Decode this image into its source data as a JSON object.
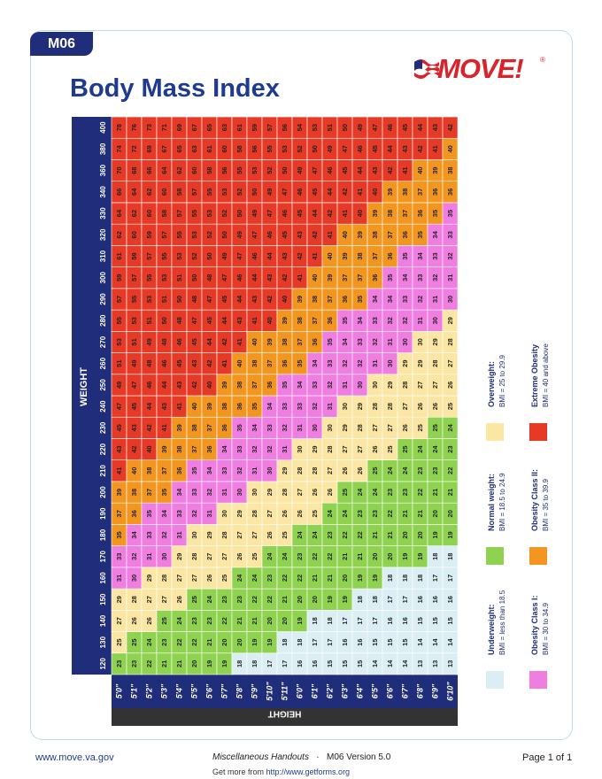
{
  "header": {
    "tab_label": "M06",
    "title": "Body Mass Index",
    "logo_text": "MOVE!",
    "logo_reg": "®"
  },
  "footer": {
    "website": "www.move.va.gov",
    "handout_title": "Miscellaneous Handouts",
    "separator": "·",
    "version": "M06 Version 5.0",
    "page": "Page 1 of 1",
    "get_more_prefix": "Get more from",
    "get_more_url": "http://www.getforms.org"
  },
  "chart_data": {
    "type": "table",
    "title": "",
    "weight_label": "WEIGHT",
    "height_label": "HEIGHT",
    "weights": [
      "120",
      "130",
      "140",
      "150",
      "160",
      "170",
      "180",
      "190",
      "200",
      "210",
      "220",
      "230",
      "240",
      "250",
      "260",
      "270",
      "280",
      "290",
      "300",
      "310",
      "320",
      "330",
      "340",
      "360",
      "380",
      "400"
    ],
    "heights": [
      "5'0\"",
      "5'1\"",
      "5'2\"",
      "5'3\"",
      "5'4\"",
      "5'5\"",
      "5'6\"",
      "5'7\"",
      "5'8\"",
      "5'9\"",
      "5'10\"",
      "5'11\"",
      "6'0\"",
      "6'1\"",
      "6'2\"",
      "6'3\"",
      "6'4\"",
      "6'5\"",
      "6'6\"",
      "6'7\"",
      "6'8\"",
      "6'9\"",
      "6'10\""
    ],
    "weight_values_lb": [
      120,
      130,
      140,
      150,
      160,
      170,
      180,
      190,
      200,
      210,
      220,
      230,
      240,
      250,
      260,
      270,
      280,
      290,
      300,
      310,
      320,
      330,
      340,
      360,
      380,
      400
    ],
    "height_values_in": [
      60,
      61,
      62,
      63,
      64,
      65,
      66,
      67,
      68,
      69,
      70,
      71,
      72,
      73,
      74,
      75,
      76,
      77,
      78,
      79,
      80,
      81,
      82
    ],
    "categories": [
      {
        "key": "under",
        "title": "Underweight:",
        "range": "BMI = less than 18.5",
        "max": 18.5,
        "color": "#dbeef3"
      },
      {
        "key": "normal",
        "title": "Normal weight:",
        "range": "BMI = 18.5 to 24.9",
        "max": 25,
        "color": "#8ed24f"
      },
      {
        "key": "over",
        "title": "Overweight:",
        "range": "BMI = 25 to 29.9",
        "max": 30,
        "color": "#fbe7a3"
      },
      {
        "key": "ob1",
        "title": "Obesity Class I:",
        "range": "BMI = 30 to 34.9",
        "max": 35,
        "color": "#ef7ee0"
      },
      {
        "key": "ob2",
        "title": "Obesity Class II:",
        "range": "BMI = 35 to 39.9",
        "max": 40,
        "color": "#f2961f"
      },
      {
        "key": "ext",
        "title": "Extreme Obesity",
        "range": "BMI = 40 and above",
        "max": 1000,
        "color": "#e63a26"
      }
    ]
  }
}
